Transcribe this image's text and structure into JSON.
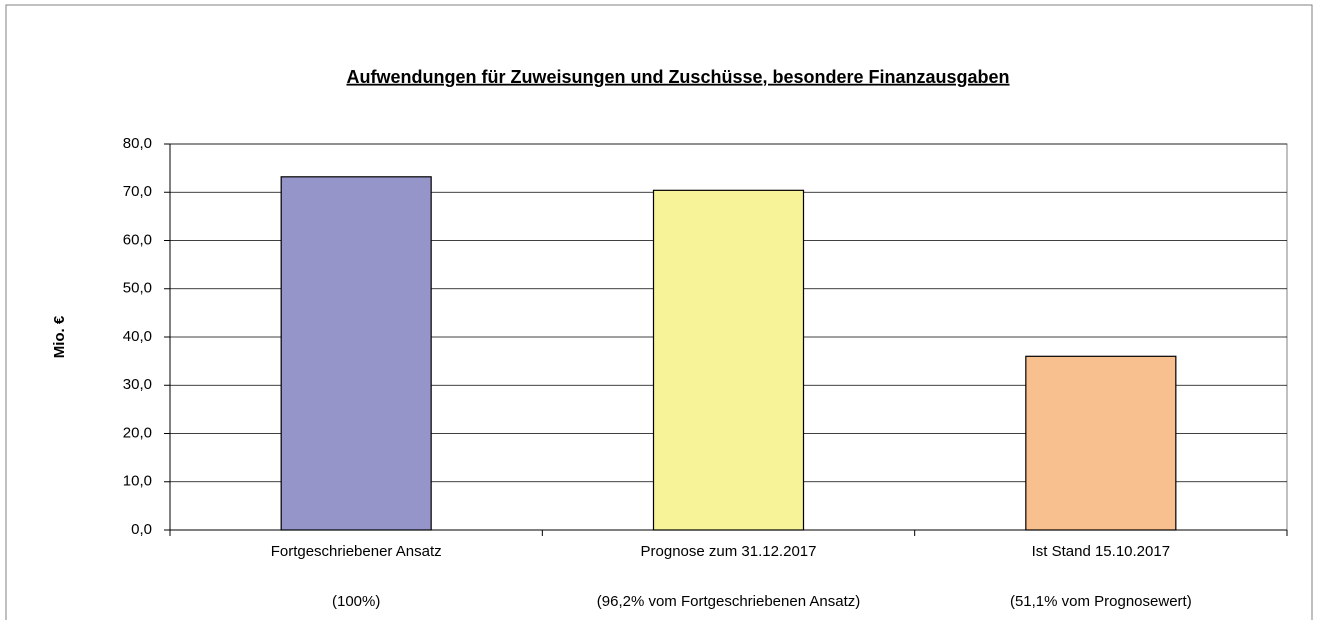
{
  "chart_data": {
    "type": "bar",
    "title": "Aufwendungen für Zuweisungen und Zuschüsse, besondere Finanzausgaben",
    "y_axis_label": "Mio. €",
    "categories": [
      "Fortgeschriebener Ansatz",
      "Prognose zum 31.12.2017",
      "Ist Stand 15.10.2017"
    ],
    "category_notes": [
      "(100%)",
      "(96,2% vom Fortgeschriebenen Ansatz)",
      "(51,1% vom Prognosewert)"
    ],
    "values": [
      73.2,
      70.4,
      36.0
    ],
    "colors": [
      "#9595c9",
      "#f7f398",
      "#f9c08f"
    ],
    "ylim": [
      0,
      80
    ],
    "yticks": [
      {
        "value": 0,
        "label": "0,0"
      },
      {
        "value": 10,
        "label": "10,0"
      },
      {
        "value": 20,
        "label": "20,0"
      },
      {
        "value": 30,
        "label": "30,0"
      },
      {
        "value": 40,
        "label": "40,0"
      },
      {
        "value": 50,
        "label": "50,0"
      },
      {
        "value": 60,
        "label": "60,0"
      },
      {
        "value": 70,
        "label": "70,0"
      },
      {
        "value": 80,
        "label": "80,0"
      }
    ],
    "grid": true
  }
}
